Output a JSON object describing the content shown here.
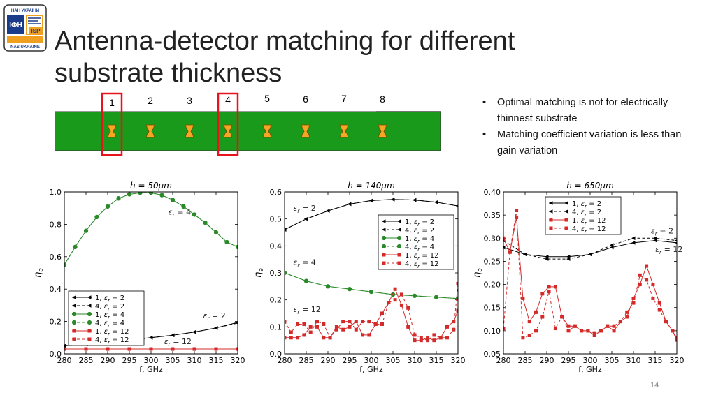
{
  "logo": {
    "top": "НАН УКРАЇНИ",
    "left": "ІФН",
    "right": "ISP",
    "bottom": "NAS UKRAINE"
  },
  "title": {
    "line1": "Antenna-detector matching for different",
    "line2": "substrate thickness"
  },
  "strip": {
    "labels": [
      "1",
      "2",
      "3",
      "4",
      "5",
      "6",
      "7",
      "8"
    ],
    "highlighted": [
      1,
      4
    ],
    "substrate_color": "#1a9a1a",
    "antenna_color": "#f5a623",
    "highlight_color": "#e8141b"
  },
  "bullets": [
    "Optimal matching is not for electrically thinnest substrate",
    "Matching coefficient variation is less than gain variation"
  ],
  "page_number": "14",
  "chart_data": [
    {
      "type": "line",
      "title": "h = 50μm",
      "xlabel": "f, GHz",
      "ylabel": "η_a",
      "xlim": [
        280,
        320
      ],
      "ylim": [
        0.0,
        1.0
      ],
      "xticks": [
        "280",
        "285",
        "290",
        "295",
        "300",
        "305",
        "310",
        "315",
        "320"
      ],
      "yticks": [
        "0.0",
        "0.2",
        "0.4",
        "0.6",
        "0.8",
        "1.0"
      ],
      "legend_loc": "lower-left",
      "annotations": [
        {
          "text": "ε_r = 4",
          "x": 304,
          "y": 0.86
        },
        {
          "text": "ε_r = 2",
          "x": 312,
          "y": 0.22
        },
        {
          "text": "ε_r = 12",
          "x": 303,
          "y": 0.06
        }
      ],
      "series": [
        {
          "name": "1, ε_r = 2",
          "color": "#000000",
          "dash": false,
          "marker": "tri",
          "x": [
            280,
            285,
            290,
            295,
            300,
            305,
            310,
            315,
            320
          ],
          "y": [
            0.05,
            0.06,
            0.07,
            0.085,
            0.1,
            0.115,
            0.135,
            0.16,
            0.195
          ]
        },
        {
          "name": "4, ε_r = 2",
          "color": "#000000",
          "dash": true,
          "marker": "tri",
          "x": [
            280,
            285,
            290,
            295,
            300,
            305,
            310,
            315,
            320
          ],
          "y": [
            0.05,
            0.06,
            0.07,
            0.085,
            0.1,
            0.115,
            0.135,
            0.16,
            0.19
          ]
        },
        {
          "name": "1, ε_r = 4",
          "color": "#2a8a2a",
          "dash": false,
          "marker": "circle",
          "x": [
            280,
            282.5,
            285,
            287.5,
            290,
            292.5,
            295,
            297.5,
            300,
            302.5,
            305,
            307.5,
            310,
            312.5,
            315,
            317.5,
            320
          ],
          "y": [
            0.55,
            0.66,
            0.76,
            0.845,
            0.91,
            0.96,
            0.985,
            0.995,
            0.995,
            0.98,
            0.95,
            0.91,
            0.86,
            0.81,
            0.75,
            0.69,
            0.66
          ]
        },
        {
          "name": "4, ε_r = 4",
          "color": "#2a8a2a",
          "dash": true,
          "marker": "circle",
          "x": [
            280,
            282.5,
            285,
            287.5,
            290,
            292.5,
            295,
            297.5,
            300,
            302.5,
            305,
            307.5,
            310,
            312.5,
            315,
            317.5,
            320
          ],
          "y": [
            0.55,
            0.66,
            0.76,
            0.845,
            0.91,
            0.96,
            0.985,
            0.995,
            0.995,
            0.98,
            0.95,
            0.91,
            0.86,
            0.81,
            0.75,
            0.69,
            0.66
          ]
        },
        {
          "name": "1, ε_r = 12",
          "color": "#d42a2a",
          "dash": false,
          "marker": "square",
          "x": [
            280,
            285,
            290,
            295,
            300,
            305,
            310,
            315,
            320
          ],
          "y": [
            0.03,
            0.03,
            0.03,
            0.03,
            0.03,
            0.03,
            0.03,
            0.03,
            0.03
          ]
        },
        {
          "name": "4, ε_r = 12",
          "color": "#d42a2a",
          "dash": true,
          "marker": "square",
          "x": [
            280,
            285,
            290,
            295,
            300,
            305,
            310,
            315,
            320
          ],
          "y": [
            0.03,
            0.03,
            0.03,
            0.03,
            0.03,
            0.03,
            0.03,
            0.03,
            0.03
          ]
        }
      ]
    },
    {
      "type": "line",
      "title": "h = 140μm",
      "xlabel": "f, GHz",
      "ylabel": "η_a",
      "xlim": [
        280,
        320
      ],
      "ylim": [
        0.0,
        0.6
      ],
      "xticks": [
        "280",
        "285",
        "290",
        "295",
        "300",
        "305",
        "310",
        "315",
        "320"
      ],
      "yticks": [
        "0.0",
        "0.1",
        "0.2",
        "0.3",
        "0.4",
        "0.5",
        "0.6"
      ],
      "legend_loc": "upper-right",
      "annotations": [
        {
          "text": "ε_r = 2",
          "x": 282,
          "y": 0.53
        },
        {
          "text": "ε_r = 4",
          "x": 282,
          "y": 0.33
        },
        {
          "text": "ε_r = 12",
          "x": 282,
          "y": 0.155
        }
      ],
      "series": [
        {
          "name": "1, ε_r = 2",
          "color": "#000000",
          "dash": false,
          "marker": "tri",
          "x": [
            280,
            285,
            290,
            295,
            300,
            305,
            310,
            315,
            320
          ],
          "y": [
            0.46,
            0.5,
            0.53,
            0.555,
            0.568,
            0.572,
            0.57,
            0.562,
            0.548
          ]
        },
        {
          "name": "4, ε_r = 2",
          "color": "#000000",
          "dash": true,
          "marker": "tri",
          "x": [
            280,
            285,
            290,
            295,
            300,
            305,
            310,
            315,
            320
          ],
          "y": [
            0.46,
            0.5,
            0.53,
            0.555,
            0.568,
            0.572,
            0.57,
            0.562,
            0.548
          ]
        },
        {
          "name": "1, ε_r = 4",
          "color": "#2a8a2a",
          "dash": false,
          "marker": "circle",
          "x": [
            280,
            285,
            290,
            295,
            300,
            305,
            310,
            315,
            320
          ],
          "y": [
            0.3,
            0.27,
            0.25,
            0.24,
            0.23,
            0.22,
            0.215,
            0.21,
            0.205
          ]
        },
        {
          "name": "4, ε_r = 4",
          "color": "#2a8a2a",
          "dash": true,
          "marker": "circle",
          "x": [
            280,
            285,
            290,
            295,
            300,
            305,
            310,
            315,
            320
          ],
          "y": [
            0.3,
            0.27,
            0.25,
            0.24,
            0.23,
            0.22,
            0.215,
            0.21,
            0.205
          ]
        },
        {
          "name": "1, ε_r = 12",
          "color": "#d42a2a",
          "dash": false,
          "marker": "square",
          "x": [
            280,
            281.5,
            283,
            284.5,
            286,
            287.5,
            289,
            290.5,
            292,
            293.5,
            295,
            296.5,
            298,
            299.5,
            301,
            302.5,
            304,
            305.5,
            307,
            308.5,
            310,
            311.5,
            313,
            314.5,
            316,
            317.5,
            319,
            320
          ],
          "y": [
            0.06,
            0.06,
            0.06,
            0.07,
            0.1,
            0.1,
            0.06,
            0.06,
            0.1,
            0.09,
            0.1,
            0.12,
            0.07,
            0.07,
            0.11,
            0.15,
            0.19,
            0.24,
            0.18,
            0.1,
            0.05,
            0.05,
            0.06,
            0.05,
            0.06,
            0.1,
            0.12,
            0.16
          ]
        },
        {
          "name": "4, ε_r = 12",
          "color": "#d42a2a",
          "dash": true,
          "marker": "square",
          "x": [
            280,
            281.5,
            283,
            284.5,
            286,
            287.5,
            289,
            290.5,
            292,
            293.5,
            295,
            296.5,
            298,
            299.5,
            301,
            302.5,
            304,
            305.5,
            307,
            308.5,
            310,
            311.5,
            313,
            314.5,
            316,
            317.5,
            319,
            320
          ],
          "y": [
            0.12,
            0.08,
            0.11,
            0.11,
            0.08,
            0.12,
            0.11,
            0.06,
            0.09,
            0.12,
            0.12,
            0.09,
            0.12,
            0.12,
            0.11,
            0.11,
            0.19,
            0.2,
            0.22,
            0.17,
            0.07,
            0.06,
            0.05,
            0.07,
            0.06,
            0.06,
            0.09,
            0.26
          ]
        }
      ]
    },
    {
      "type": "line",
      "title": "h = 650μm",
      "xlabel": "f, GHz",
      "ylabel": "η_a",
      "xlim": [
        280,
        320
      ],
      "ylim": [
        0.05,
        0.4
      ],
      "xticks": [
        "280",
        "285",
        "290",
        "295",
        "300",
        "305",
        "310",
        "315",
        "320"
      ],
      "yticks": [
        "0.05",
        "0.10",
        "0.15",
        "0.20",
        "0.25",
        "0.30",
        "0.35",
        "0.40"
      ],
      "legend_loc": "upper-center",
      "annotations": [
        {
          "text": "ε_r = 2",
          "x": 314,
          "y": 0.31
        },
        {
          "text": "ε_r = 12",
          "x": 315,
          "y": 0.27
        }
      ],
      "series": [
        {
          "name": "1, ε_r = 2",
          "color": "#000000",
          "dash": false,
          "marker": "tri",
          "x": [
            280,
            285,
            290,
            295,
            300,
            305,
            310,
            315,
            320
          ],
          "y": [
            0.28,
            0.265,
            0.26,
            0.26,
            0.265,
            0.28,
            0.29,
            0.295,
            0.29
          ]
        },
        {
          "name": "4, ε_r = 2",
          "color": "#000000",
          "dash": true,
          "marker": "tri",
          "x": [
            280,
            285,
            290,
            295,
            300,
            305,
            310,
            315,
            320
          ],
          "y": [
            0.295,
            0.265,
            0.255,
            0.255,
            0.265,
            0.285,
            0.3,
            0.3,
            0.295
          ]
        },
        {
          "name": "1, ε_r = 12",
          "color": "#d42a2a",
          "dash": false,
          "marker": "square",
          "x": [
            280,
            281.5,
            283,
            284.5,
            286,
            287.5,
            289,
            290.5,
            292,
            293.5,
            295,
            296.5,
            298,
            299.5,
            301,
            302.5,
            304,
            305.5,
            307,
            308.5,
            310,
            311.5,
            313,
            314.5,
            316,
            317.5,
            319,
            320
          ],
          "y": [
            0.3,
            0.27,
            0.345,
            0.17,
            0.12,
            0.14,
            0.18,
            0.195,
            0.195,
            0.13,
            0.11,
            0.11,
            0.1,
            0.1,
            0.09,
            0.1,
            0.11,
            0.1,
            0.12,
            0.13,
            0.17,
            0.2,
            0.24,
            0.2,
            0.16,
            0.12,
            0.1,
            0.08
          ]
        },
        {
          "name": "4, ε_r = 12",
          "color": "#d42a2a",
          "dash": true,
          "marker": "square",
          "x": [
            280,
            281.5,
            283,
            284.5,
            286,
            287.5,
            289,
            290.5,
            292,
            293.5,
            295,
            296.5,
            298,
            299.5,
            301,
            302.5,
            304,
            305.5,
            307,
            308.5,
            310,
            311.5,
            313,
            314.5,
            316,
            317.5,
            319,
            320
          ],
          "y": [
            0.105,
            0.27,
            0.36,
            0.085,
            0.09,
            0.1,
            0.13,
            0.185,
            0.105,
            0.13,
            0.1,
            0.11,
            0.1,
            0.1,
            0.095,
            0.1,
            0.11,
            0.11,
            0.12,
            0.14,
            0.16,
            0.22,
            0.21,
            0.17,
            0.145,
            0.12,
            0.1,
            0.085
          ]
        }
      ]
    }
  ]
}
